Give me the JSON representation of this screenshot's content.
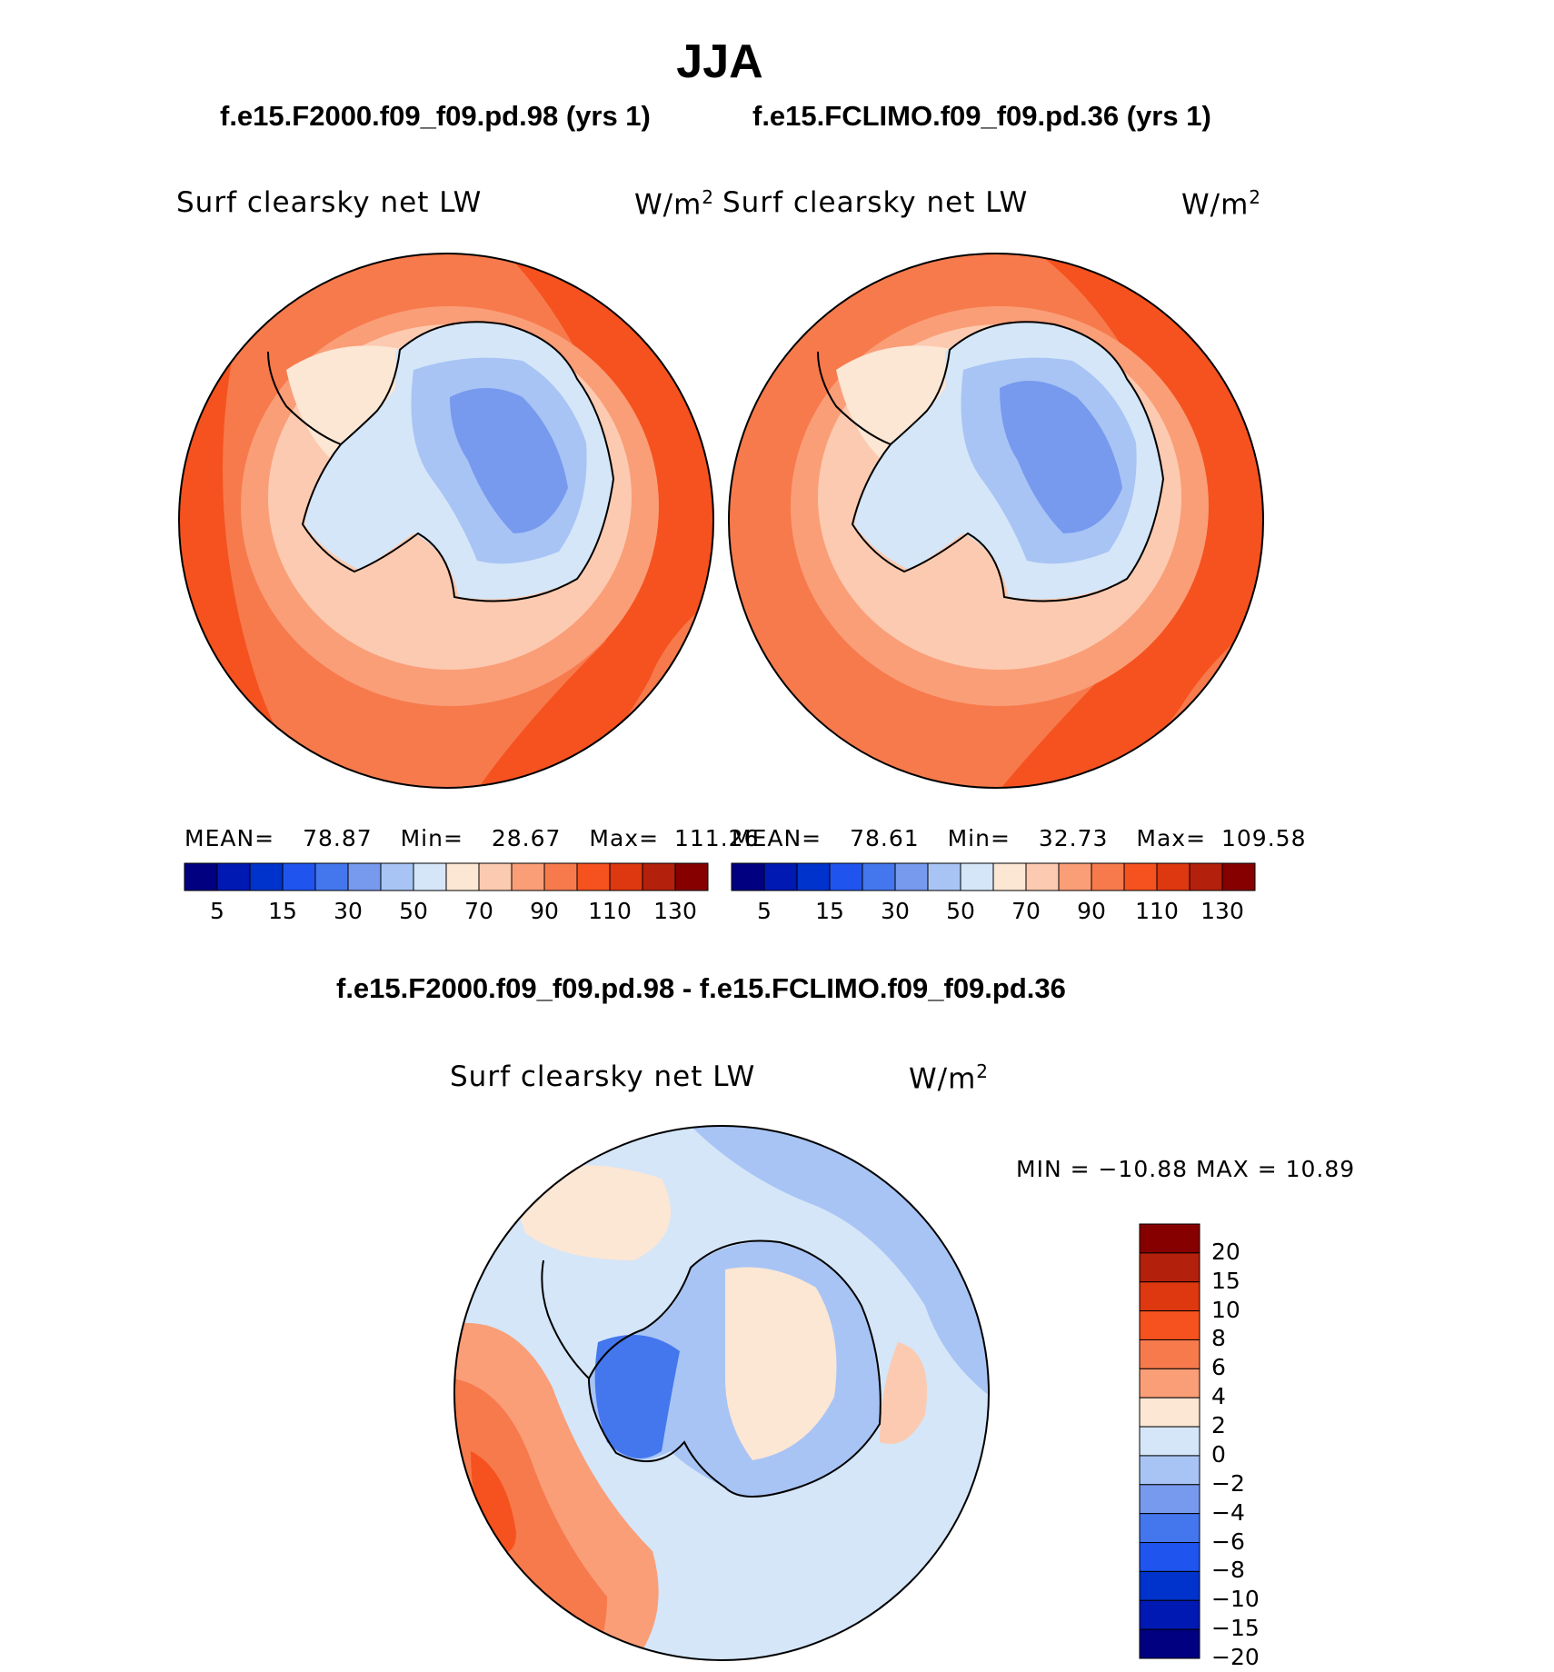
{
  "season": "JJA",
  "panels": [
    {
      "case_title": "f.e15.F2000.f09_f09.pd.98 (yrs 1)",
      "variable": "Surf clearsky net LW",
      "units": "W/m",
      "units_exp": "2",
      "mean_label": "MEAN=",
      "mean": "78.87",
      "min_label": "Min=",
      "min": "28.67",
      "max_label": "Max=",
      "max": "111.26"
    },
    {
      "case_title": "f.e15.FCLIMO.f09_f09.pd.36 (yrs 1)",
      "variable": "Surf clearsky net LW",
      "units": "W/m",
      "units_exp": "2",
      "mean_label": "MEAN=",
      "mean": "78.61",
      "min_label": "Min=",
      "min": "32.73",
      "max_label": "Max=",
      "max": "109.58"
    }
  ],
  "diff": {
    "title": "f.e15.F2000.f09_f09.pd.98 - f.e15.FCLIMO.f09_f09.pd.36",
    "variable": "Surf clearsky net LW",
    "units": "W/m",
    "units_exp": "2",
    "minmax": "MIN = −10.88 MAX =   10.89"
  },
  "chart_data": [
    {
      "type": "heatmap",
      "title": "f.e15.F2000.f09_f09.pd.98 (yrs 1)",
      "variable": "Surf clearsky net LW",
      "units": "W/m2",
      "region": "Antarctic polar stereographic",
      "mean": 78.87,
      "min": 28.67,
      "max": 111.26,
      "colorbar_ticks": [
        "5",
        "15",
        "30",
        "50",
        "70",
        "90",
        "110",
        "130"
      ],
      "colorbar_levels": [
        5,
        10,
        15,
        20,
        30,
        40,
        50,
        60,
        70,
        80,
        90,
        100,
        110,
        120,
        130
      ]
    },
    {
      "type": "heatmap",
      "title": "f.e15.FCLIMO.f09_f09.pd.36 (yrs 1)",
      "variable": "Surf clearsky net LW",
      "units": "W/m2",
      "region": "Antarctic polar stereographic",
      "mean": 78.61,
      "min": 32.73,
      "max": 109.58,
      "colorbar_ticks": [
        "5",
        "15",
        "30",
        "50",
        "70",
        "90",
        "110",
        "130"
      ],
      "colorbar_levels": [
        5,
        10,
        15,
        20,
        30,
        40,
        50,
        60,
        70,
        80,
        90,
        100,
        110,
        120,
        130
      ]
    },
    {
      "type": "heatmap",
      "title": "f.e15.F2000.f09_f09.pd.98 - f.e15.FCLIMO.f09_f09.pd.36",
      "variable": "Surf clearsky net LW",
      "units": "W/m2",
      "region": "Antarctic polar stereographic",
      "min": -10.88,
      "max": 10.89,
      "colorbar_ticks": [
        "20",
        "15",
        "10",
        "8",
        "6",
        "4",
        "2",
        "0",
        "−2",
        "−4",
        "−6",
        "−8",
        "−10",
        "−15",
        "−20"
      ]
    }
  ],
  "colors": {
    "abs_scale": [
      "#000080",
      "#0019b3",
      "#0033cc",
      "#1f55ee",
      "#4477ee",
      "#7799ee",
      "#a8c4f4",
      "#d4e6f8",
      "#fce6d4",
      "#fccab0",
      "#fa9e78",
      "#f77a4c",
      "#f5521f",
      "#dd3810",
      "#b3200c",
      "#870000"
    ],
    "diff_scale": [
      "#870000",
      "#b3200c",
      "#dd3810",
      "#f5521f",
      "#f77a4c",
      "#fa9e78",
      "#fce6d4",
      "#d4e6f8",
      "#a8c4f4",
      "#7799ee",
      "#4477ee",
      "#1f55ee",
      "#0033cc",
      "#0019b3",
      "#000080"
    ]
  }
}
